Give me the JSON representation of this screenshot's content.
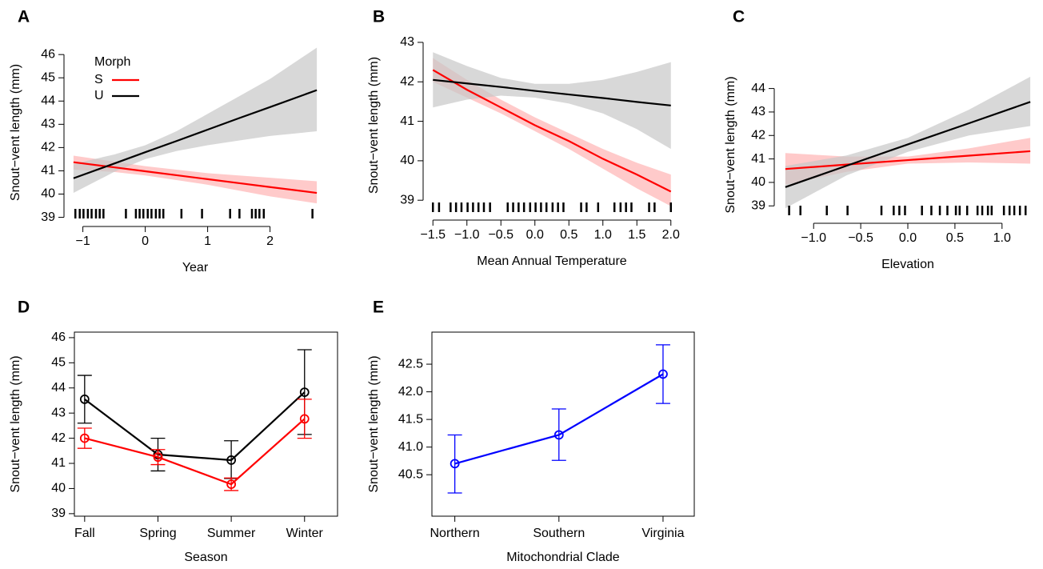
{
  "chart_data": [
    {
      "type": "line",
      "title": "A",
      "xlabel": "Year",
      "ylabel": "Snout−vent length (mm)",
      "xlim": [
        -1.2,
        2.8
      ],
      "ylim": [
        38.95,
        46.35
      ],
      "xticks": [
        {
          "value": -1,
          "label": "−1"
        },
        0,
        1,
        2
      ],
      "yticks": [
        39,
        40,
        41,
        42,
        43,
        44,
        45,
        46
      ],
      "legend": "top-left",
      "legend_title": "Morph",
      "x": [
        -1.15,
        -0.5,
        0,
        0.5,
        1,
        1.5,
        2,
        2.75
      ],
      "series": [
        {
          "name": "S",
          "color": "#ff0000",
          "band_color": "#ffb3b3",
          "values": [
            41.37,
            41.15,
            40.98,
            40.81,
            40.64,
            40.47,
            40.3,
            40.05
          ],
          "lower": [
            41.05,
            40.95,
            40.8,
            40.6,
            40.4,
            40.15,
            39.9,
            39.6
          ],
          "upper": [
            41.65,
            41.4,
            41.2,
            41.05,
            40.9,
            40.8,
            40.7,
            40.55
          ]
        },
        {
          "name": "U",
          "color": "#000000",
          "band_color": "#c8c8c8",
          "values": [
            40.68,
            41.31,
            41.8,
            42.28,
            42.77,
            43.26,
            43.74,
            44.47
          ],
          "lower": [
            40.05,
            40.95,
            41.5,
            41.85,
            42.1,
            42.3,
            42.5,
            42.7
          ],
          "upper": [
            41.3,
            41.7,
            42.1,
            42.7,
            43.45,
            44.2,
            44.95,
            46.3
          ]
        }
      ],
      "rug": [
        -1.12,
        -1.05,
        -0.99,
        -0.92,
        -0.86,
        -0.79,
        -0.73,
        -0.67,
        -0.31,
        -0.15,
        -0.09,
        -0.03,
        0.04,
        0.1,
        0.17,
        0.23,
        0.29,
        0.58,
        0.91,
        1.36,
        1.51,
        1.71,
        1.77,
        1.83,
        1.9,
        2.68
      ]
    },
    {
      "type": "line",
      "title": "B",
      "xlabel": "Mean Annual Temperature",
      "ylabel": "Snout−vent length (mm)",
      "xlim": [
        -1.55,
        2.05
      ],
      "ylim": [
        38.7,
        43.1
      ],
      "xticks": [
        {
          "value": -1.5,
          "label": "−1.5"
        },
        {
          "value": -1,
          "label": "−1.0"
        },
        {
          "value": -0.5,
          "label": "−0.5"
        },
        {
          "value": 0,
          "label": "0.0"
        },
        0.5,
        {
          "value": 1,
          "label": "1.0"
        },
        1.5,
        {
          "value": 2,
          "label": "2.0"
        }
      ],
      "yticks": [
        39,
        40,
        41,
        42,
        43
      ],
      "x": [
        -1.5,
        -1,
        -0.5,
        0,
        0.5,
        1,
        1.5,
        2
      ],
      "series": [
        {
          "color": "#ff0000",
          "band_color": "#ffb3b3",
          "values": [
            42.3,
            41.8,
            41.35,
            40.9,
            40.5,
            40.05,
            39.65,
            39.22
          ],
          "lower": [
            42.0,
            41.6,
            41.2,
            40.75,
            40.3,
            39.8,
            39.3,
            38.85
          ],
          "upper": [
            42.6,
            42.05,
            41.55,
            41.1,
            40.7,
            40.3,
            39.95,
            39.65
          ]
        },
        {
          "color": "#000000",
          "band_color": "#c8c8c8",
          "values": [
            42.05,
            41.96,
            41.87,
            41.77,
            41.68,
            41.59,
            41.49,
            41.4
          ],
          "lower": [
            41.35,
            41.55,
            41.65,
            41.6,
            41.45,
            41.2,
            40.8,
            40.3
          ],
          "upper": [
            42.75,
            42.4,
            42.1,
            41.95,
            41.95,
            42.05,
            42.25,
            42.5
          ]
        }
      ],
      "rug": [
        -1.5,
        -1.41,
        -1.24,
        -1.16,
        -1.08,
        -0.99,
        -0.91,
        -0.83,
        -0.75,
        -0.66,
        -0.4,
        -0.32,
        -0.24,
        -0.16,
        -0.07,
        0.01,
        0.09,
        0.17,
        0.26,
        0.34,
        0.42,
        0.68,
        0.76,
        0.93,
        1.17,
        1.26,
        1.34,
        1.42,
        1.68,
        1.76,
        2.0
      ]
    },
    {
      "type": "line",
      "title": "C",
      "xlabel": "Elevation",
      "ylabel": "Snout−vent length (mm)",
      "xlim": [
        -1.35,
        1.35
      ],
      "ylim": [
        38.6,
        44.6
      ],
      "xticks": [
        {
          "value": -1,
          "label": "−1.0"
        },
        {
          "value": -0.5,
          "label": "−0.5"
        },
        {
          "value": 0,
          "label": "0.0"
        },
        0.5,
        {
          "value": 1,
          "label": "1.0"
        }
      ],
      "yticks": [
        39,
        40,
        41,
        42,
        43,
        44
      ],
      "x": [
        -1.3,
        -0.65,
        0,
        0.65,
        1.3
      ],
      "series": [
        {
          "color": "#ff0000",
          "band_color": "#ffb3b3",
          "values": [
            40.57,
            40.76,
            40.95,
            41.14,
            41.33
          ],
          "lower": [
            39.9,
            40.45,
            40.8,
            40.85,
            40.8
          ],
          "upper": [
            41.25,
            41.1,
            41.1,
            41.45,
            41.9
          ]
        },
        {
          "color": "#000000",
          "band_color": "#c8c8c8",
          "values": [
            39.8,
            40.71,
            41.62,
            42.52,
            43.43
          ],
          "lower": [
            38.9,
            40.3,
            41.3,
            42.0,
            42.4
          ],
          "upper": [
            40.7,
            41.15,
            41.9,
            43.1,
            44.5
          ]
        }
      ],
      "rug": [
        -1.26,
        -1.14,
        -0.86,
        -0.64,
        -0.28,
        -0.15,
        -0.09,
        -0.03,
        0.15,
        0.25,
        0.34,
        0.42,
        0.51,
        0.55,
        0.63,
        0.74,
        0.79,
        0.85,
        0.89,
        1.02,
        1.08,
        1.13,
        1.19,
        1.25
      ]
    },
    {
      "type": "line",
      "title": "D",
      "xlabel": "Season",
      "ylabel": "Snout−vent length (mm)",
      "categories": [
        "Fall",
        "Spring",
        "Summer",
        "Winter"
      ],
      "ylim": [
        38.9,
        46.22
      ],
      "yticks": [
        39,
        40,
        41,
        42,
        43,
        44,
        45,
        46
      ],
      "series": [
        {
          "color": "#000000",
          "values": [
            43.55,
            41.35,
            41.13,
            43.83
          ],
          "lower": [
            42.6,
            40.7,
            40.4,
            42.15
          ],
          "upper": [
            44.5,
            42.0,
            41.9,
            45.52
          ]
        },
        {
          "color": "#ff0000",
          "values": [
            42.0,
            41.25,
            40.17,
            42.77
          ],
          "lower": [
            41.6,
            40.95,
            39.92,
            42.0
          ],
          "upper": [
            42.4,
            41.55,
            40.42,
            43.55
          ]
        }
      ]
    },
    {
      "type": "line",
      "title": "E",
      "xlabel": "Mitochondrial Clade",
      "ylabel": "Snout−vent length (mm)",
      "categories": [
        "Northern",
        "Southern",
        "Virginia"
      ],
      "ylim": [
        39.75,
        43.08
      ],
      "yticks": [
        40.5,
        {
          "value": 41,
          "label": "41.0"
        },
        41.5,
        {
          "value": 42,
          "label": "42.0"
        },
        42.5
      ],
      "series": [
        {
          "color": "#0000ff",
          "values": [
            40.7,
            41.22,
            42.32
          ],
          "lower": [
            40.17,
            40.76,
            41.79
          ],
          "upper": [
            41.22,
            41.69,
            42.85
          ]
        }
      ]
    }
  ]
}
